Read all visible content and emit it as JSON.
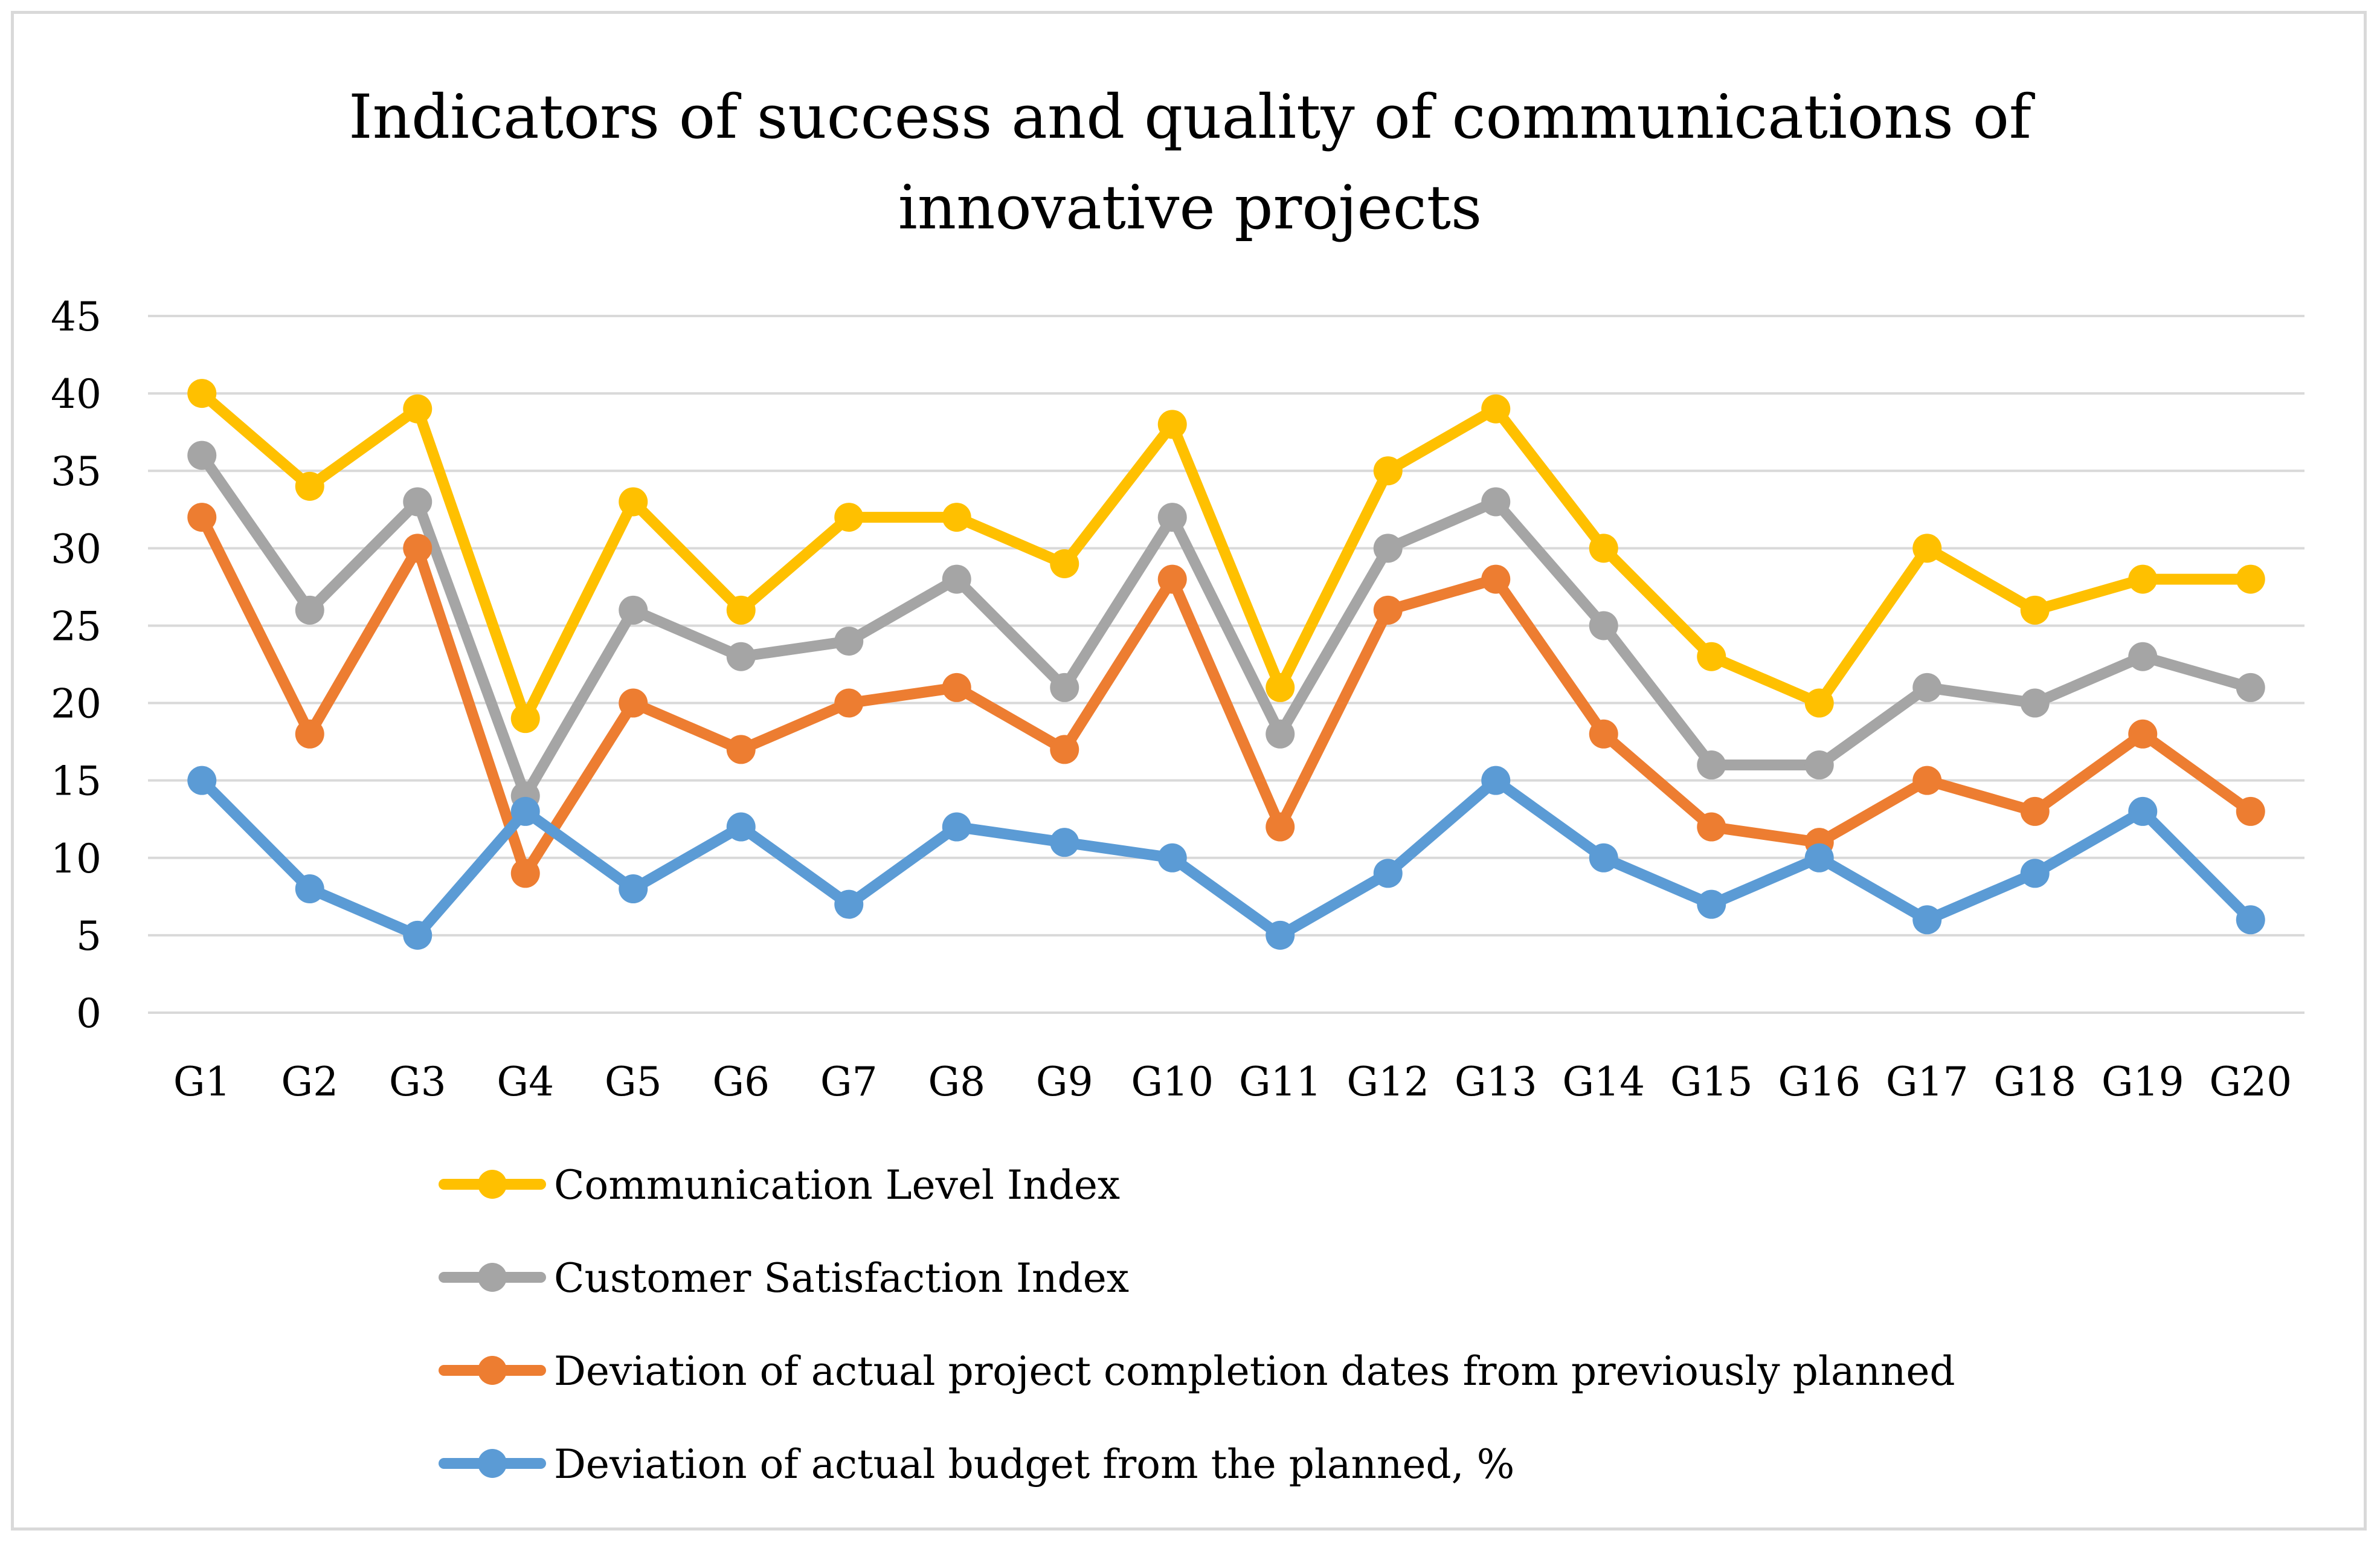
{
  "chart_data": {
    "type": "line",
    "title_lines": [
      "Indicators of success and quality of communications of",
      "innovative projects"
    ],
    "xlabel": "",
    "ylabel": "",
    "ylim": [
      0,
      45
    ],
    "y_ticks": [
      0,
      5,
      10,
      15,
      20,
      25,
      30,
      35,
      40,
      45
    ],
    "grid": true,
    "legend_position": "bottom",
    "categories": [
      "G1",
      "G2",
      "G3",
      "G4",
      "G5",
      "G6",
      "G7",
      "G8",
      "G9",
      "G10",
      "G11",
      "G12",
      "G13",
      "G14",
      "G15",
      "G16",
      "G17",
      "G18",
      "G19",
      "G20"
    ],
    "series": [
      {
        "name": "Communication Level Index",
        "color": "#ffc000",
        "values": [
          40,
          34,
          39,
          19,
          33,
          26,
          32,
          32,
          29,
          38,
          21,
          35,
          39,
          30,
          23,
          20,
          30,
          26,
          28,
          28
        ]
      },
      {
        "name": "Customer Satisfaction Index",
        "color": "#a5a5a5",
        "values": [
          36,
          26,
          33,
          14,
          26,
          23,
          24,
          28,
          21,
          32,
          18,
          30,
          33,
          25,
          16,
          16,
          21,
          20,
          23,
          21
        ]
      },
      {
        "name": "Deviation of actual project completion dates from previously planned",
        "color": "#ed7d31",
        "values": [
          32,
          18,
          30,
          9,
          20,
          17,
          20,
          21,
          17,
          28,
          12,
          26,
          28,
          18,
          12,
          11,
          15,
          13,
          18,
          13
        ]
      },
      {
        "name": "Deviation of actual budget from the planned, %",
        "color": "#5b9bd5",
        "values": [
          15,
          8,
          5,
          13,
          8,
          12,
          7,
          12,
          11,
          10,
          5,
          9,
          15,
          10,
          7,
          10,
          6,
          9,
          13,
          6
        ]
      }
    ]
  }
}
